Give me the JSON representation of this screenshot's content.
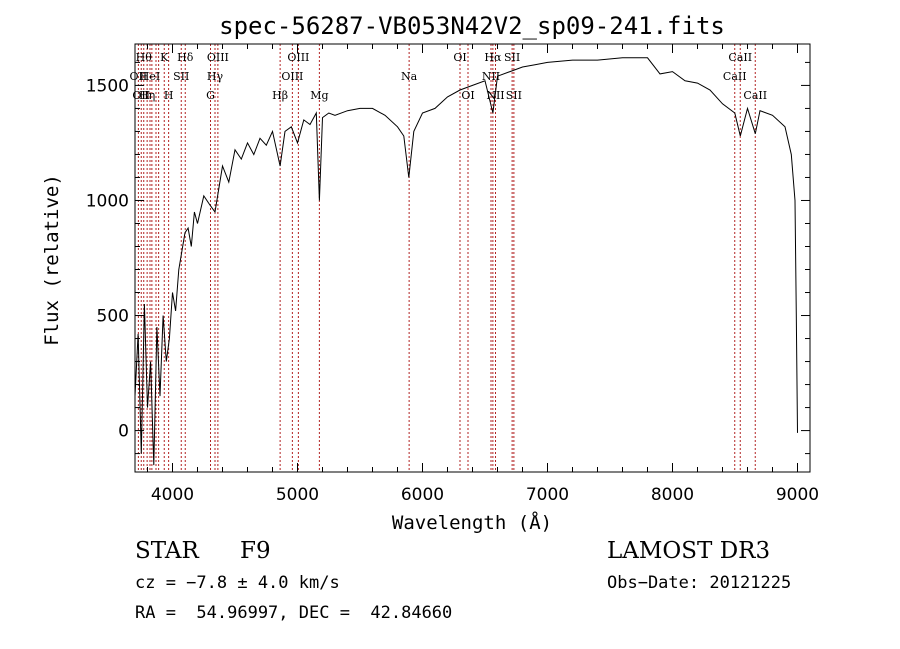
{
  "chart_data": {
    "type": "line",
    "title": "spec-56287-VB053N42V2_sp09-241.fits",
    "xlabel": "Wavelength (Å)",
    "ylabel": "Flux (relative)",
    "xlim": [
      3700,
      9100
    ],
    "ylim": [
      -180,
      1680
    ],
    "xticks": [
      4000,
      5000,
      6000,
      7000,
      8000,
      9000
    ],
    "yticks": [
      0,
      500,
      1000,
      1500
    ],
    "grid": false,
    "line_color": "#000000",
    "marker_color": "#b22222",
    "series": [
      {
        "x": [
          3700,
          3725,
          3750,
          3775,
          3800,
          3825,
          3850,
          3875,
          3900,
          3925,
          3950,
          3975,
          4000,
          4025,
          4050,
          4075,
          4100,
          4125,
          4150,
          4175,
          4200,
          4250,
          4300,
          4340,
          4400,
          4450,
          4500,
          4550,
          4600,
          4650,
          4700,
          4750,
          4800,
          4861,
          4900,
          4950,
          5000,
          5050,
          5100,
          5150,
          5175,
          5200,
          5250,
          5300,
          5400,
          5500,
          5600,
          5700,
          5800,
          5850,
          5890,
          5930,
          6000,
          6100,
          6200,
          6300,
          6400,
          6500,
          6563,
          6600,
          6700,
          6800,
          6900,
          7000,
          7200,
          7400,
          7600,
          7800,
          7900,
          8000,
          8100,
          8200,
          8300,
          8400,
          8498,
          8542,
          8600,
          8662,
          8700,
          8800,
          8900,
          8950,
          8980,
          8990,
          9000
        ],
        "y": [
          150,
          420,
          -100,
          550,
          100,
          300,
          -150,
          450,
          150,
          500,
          300,
          400,
          600,
          520,
          700,
          780,
          860,
          880,
          800,
          950,
          900,
          1020,
          980,
          950,
          1150,
          1080,
          1220,
          1180,
          1250,
          1200,
          1270,
          1240,
          1300,
          1150,
          1300,
          1320,
          1250,
          1350,
          1330,
          1380,
          1000,
          1360,
          1380,
          1370,
          1390,
          1400,
          1400,
          1370,
          1320,
          1280,
          1100,
          1300,
          1380,
          1400,
          1450,
          1480,
          1500,
          1520,
          1380,
          1540,
          1560,
          1580,
          1590,
          1600,
          1610,
          1610,
          1620,
          1620,
          1550,
          1560,
          1520,
          1510,
          1480,
          1420,
          1380,
          1280,
          1400,
          1290,
          1390,
          1370,
          1320,
          1200,
          1000,
          500,
          -10
        ]
      }
    ],
    "lines": [
      {
        "x": 3727,
        "label": "OII",
        "row": 1
      },
      {
        "x": 3750,
        "label": "OII",
        "row": 2
      },
      {
        "x": 3770,
        "label": "Hθ",
        "row": 0
      },
      {
        "x": 3797,
        "label": "Hη",
        "row": 2
      },
      {
        "x": 3820,
        "label": "HeI",
        "row": 1
      },
      {
        "x": 3835,
        "label": "",
        "row": 0
      },
      {
        "x": 3868,
        "label": "",
        "row": 2
      },
      {
        "x": 3889,
        "label": "",
        "row": 2
      },
      {
        "x": 3934,
        "label": "K",
        "row": 0
      },
      {
        "x": 3969,
        "label": "H",
        "row": 2
      },
      {
        "x": 4070,
        "label": "SII",
        "row": 1
      },
      {
        "x": 4102,
        "label": "Hδ",
        "row": 0
      },
      {
        "x": 4304,
        "label": "G",
        "row": 2
      },
      {
        "x": 4340,
        "label": "Hγ",
        "row": 1
      },
      {
        "x": 4363,
        "label": "OIII",
        "row": 0
      },
      {
        "x": 4861,
        "label": "Hβ",
        "row": 2
      },
      {
        "x": 4959,
        "label": "OIII",
        "row": 1
      },
      {
        "x": 5007,
        "label": "OIII",
        "row": 0
      },
      {
        "x": 5175,
        "label": "Mg",
        "row": 2
      },
      {
        "x": 5893,
        "label": "Na",
        "row": 1
      },
      {
        "x": 6300,
        "label": "OI",
        "row": 0
      },
      {
        "x": 6364,
        "label": "OI",
        "row": 2
      },
      {
        "x": 6548,
        "label": "NII",
        "row": 1
      },
      {
        "x": 6563,
        "label": "Hα",
        "row": 0
      },
      {
        "x": 6584,
        "label": "NII",
        "row": 2
      },
      {
        "x": 6717,
        "label": "SII",
        "row": 0
      },
      {
        "x": 6731,
        "label": "SII",
        "row": 2
      },
      {
        "x": 8498,
        "label": "CaII",
        "row": 1
      },
      {
        "x": 8542,
        "label": "CaII",
        "row": 0
      },
      {
        "x": 8662,
        "label": "CaII",
        "row": 2
      }
    ]
  },
  "info": {
    "object_class": "STAR",
    "subclass": "F9",
    "survey": "LAMOST DR3",
    "redshift": "cz = −7.8 ± 4.0 km/s",
    "obs_date": "Obs−Date: 20121225",
    "coords": "RA =  54.96997, DEC =  42.84660"
  }
}
